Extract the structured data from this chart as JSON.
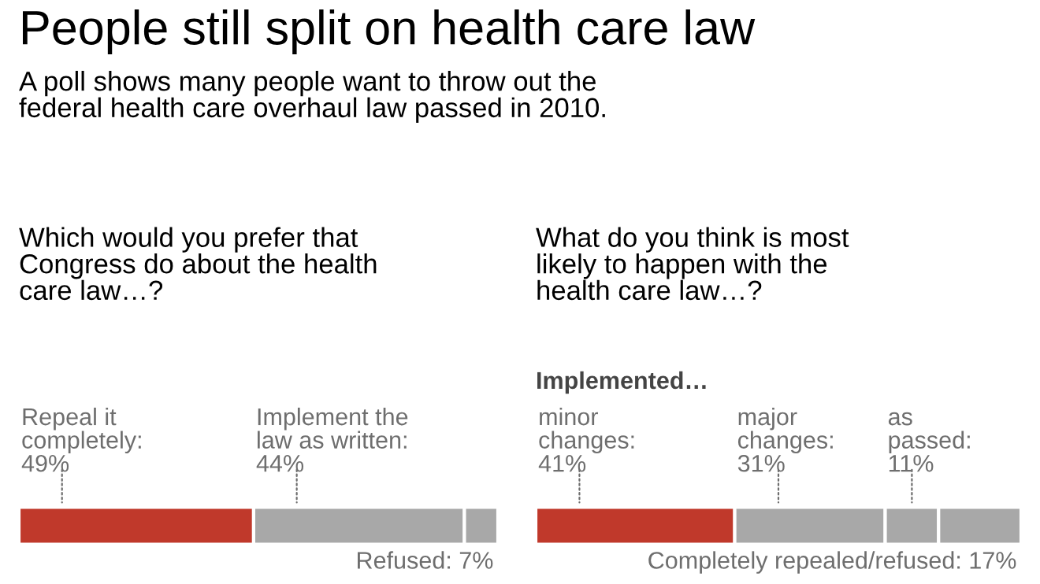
{
  "chart_data": [
    {
      "type": "bar",
      "orientation": "horizontal",
      "stacked": true,
      "title": "Which would you prefer that\nCongress do about the health\ncare law…?",
      "categories": [
        null
      ],
      "xlim": [
        0,
        100
      ],
      "annotations": [
        "People still split on health care law",
        "A poll shows many people want to throw out the\nfederal health care overhaul law passed in 2010."
      ],
      "series": [
        {
          "name": "Repeal it\ncompletely:",
          "color": "#c0392b",
          "values": [
            49
          ],
          "value_labels": [
            "49%"
          ]
        },
        {
          "name": "Implement the\nlaw as written:",
          "color": "#a8a8a8",
          "values": [
            44
          ],
          "value_labels": [
            "44%"
          ]
        },
        {
          "name": "Refused:",
          "color": "#a8a8a8",
          "values": [
            7
          ],
          "value_labels": [
            "7%"
          ]
        }
      ]
    },
    {
      "type": "bar",
      "orientation": "horizontal",
      "stacked": true,
      "title": "What do you think is most\nlikely to happen with the\nhealth care law…?",
      "categories": [
        null
      ],
      "xlim": [
        0,
        100
      ],
      "annotations": [
        "Implemented…"
      ],
      "series": [
        {
          "name": "minor\nchanges:",
          "color": "#c0392b",
          "values": [
            41
          ],
          "value_labels": [
            "41%"
          ]
        },
        {
          "name": "major\nchanges:",
          "color": "#a8a8a8",
          "values": [
            31
          ],
          "value_labels": [
            "31%"
          ]
        },
        {
          "name": "as\npassed:",
          "color": "#a8a8a8",
          "values": [
            11
          ],
          "value_labels": [
            "11%"
          ]
        },
        {
          "name": "Completely repealed/refused:",
          "color": "#a8a8a8",
          "values": [
            17
          ],
          "value_labels": [
            "17%"
          ]
        }
      ]
    }
  ]
}
